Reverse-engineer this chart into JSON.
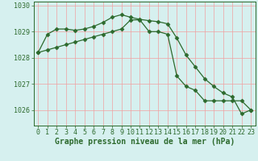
{
  "line1_x": [
    0,
    1,
    2,
    3,
    4,
    5,
    6,
    7,
    8,
    9,
    10,
    11,
    12,
    13,
    14,
    15,
    16,
    17,
    18,
    19,
    20,
    21,
    22,
    23
  ],
  "line1_y": [
    1028.2,
    1028.9,
    1029.1,
    1029.1,
    1029.05,
    1029.1,
    1029.2,
    1029.35,
    1029.55,
    1029.65,
    1029.55,
    1029.47,
    1029.42,
    1029.38,
    1029.3,
    1028.75,
    1028.1,
    1027.65,
    1027.2,
    1026.9,
    1026.65,
    1026.5,
    1025.85,
    1026.0
  ],
  "line2_x": [
    0,
    1,
    2,
    3,
    4,
    5,
    6,
    7,
    8,
    9,
    10,
    11,
    12,
    13,
    14,
    15,
    16,
    17,
    18,
    19,
    20,
    21,
    22,
    23
  ],
  "line2_y": [
    1028.2,
    1028.3,
    1028.4,
    1028.5,
    1028.6,
    1028.7,
    1028.8,
    1028.9,
    1029.0,
    1029.1,
    1029.45,
    1029.45,
    1029.0,
    1029.0,
    1028.9,
    1027.3,
    1026.9,
    1026.75,
    1026.35,
    1026.35,
    1026.35,
    1026.35,
    1026.35,
    1026.0
  ],
  "line_color": "#2d6a2d",
  "marker": "D",
  "marker_size": 2.5,
  "bg_color": "#d6f0ef",
  "grid_color": "#f0a0a0",
  "xlabel": "Graphe pression niveau de la mer (hPa)",
  "xlabel_color": "#2d6a2d",
  "xlabel_fontsize": 7,
  "tick_color": "#2d6a2d",
  "tick_fontsize": 6,
  "ylim": [
    1025.4,
    1030.15
  ],
  "yticks": [
    1026,
    1027,
    1028,
    1029,
    1030
  ],
  "xlim": [
    -0.5,
    23.5
  ],
  "xticks": [
    0,
    1,
    2,
    3,
    4,
    5,
    6,
    7,
    8,
    9,
    10,
    11,
    12,
    13,
    14,
    15,
    16,
    17,
    18,
    19,
    20,
    21,
    22,
    23
  ]
}
